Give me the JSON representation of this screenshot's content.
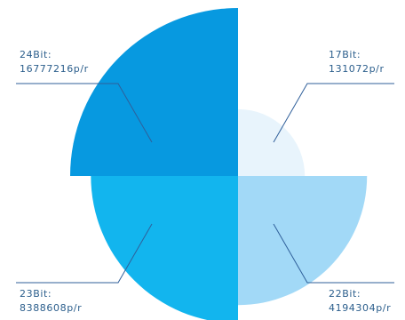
{
  "chart_data": {
    "type": "pie",
    "variant": "rose (nightingale), four quadrants",
    "title": "",
    "labels": [
      {
        "name": "17Bit:",
        "value_text": "131072p/r"
      },
      {
        "name": "22Bit:",
        "value_text": "4194304p/r"
      },
      {
        "name": "23Bit:",
        "value_text": "8388608p/r"
      },
      {
        "name": "24Bit:",
        "value_text": "16777216p/r"
      }
    ],
    "values": [
      131072,
      4194304,
      8388608,
      16777216
    ],
    "colors": [
      "#E8F4FC",
      "#A2D9F7",
      "#12B5EE",
      "#0799E0"
    ],
    "label_color": "#2B5E8C",
    "leader_color": "#2F5F9A"
  }
}
